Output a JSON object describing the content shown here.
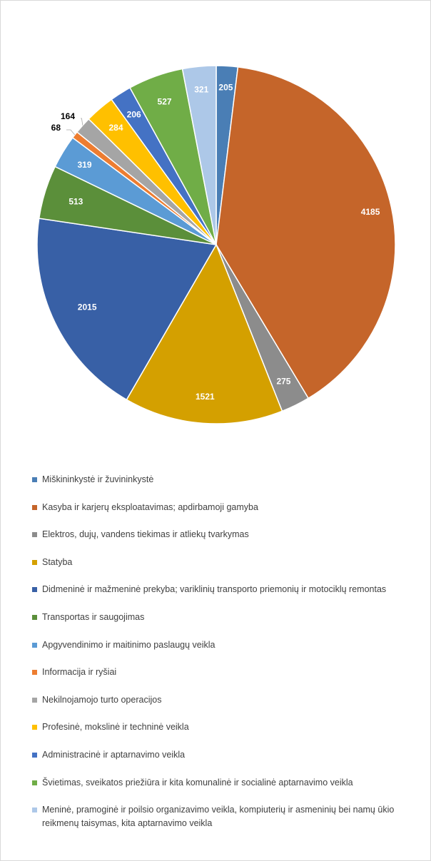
{
  "chart_data": {
    "type": "pie",
    "categories": [
      "Miškininkystė ir žuvininkystė",
      "Kasyba ir karjerų eksploatavimas; apdirbamoji gamyba",
      "Elektros, dujų, vandens tiekimas ir atliekų tvarkymas",
      "Statyba",
      "Didmeninė ir mažmeninė prekyba; variklinių transporto priemonių ir motociklų remontas",
      "Transportas ir saugojimas",
      "Apgyvendinimo ir maitinimo paslaugų veikla",
      "Informacija ir ryšiai",
      "Nekilnojamojo turto operacijos",
      "Profesinė, mokslinė ir techninė veikla",
      "Administracinė ir aptarnavimo veikla",
      "Švietimas, sveikatos priežiūra ir kita komunalinė ir socialinė aptarnavimo veikla",
      "Meninė, pramoginė ir poilsio organizavimo veikla, kompiuterių ir asmeninių bei namų ūkio reikmenų taisymas, kita aptarnavimo veikla"
    ],
    "values": [
      205,
      4185,
      275,
      1521,
      2015,
      513,
      319,
      68,
      164,
      284,
      206,
      527,
      321
    ],
    "data_labels": [
      "205",
      "4185",
      "275",
      "1521",
      "2015",
      "513",
      "319",
      "68",
      "164",
      "284",
      "206",
      "527",
      "321"
    ],
    "colors": [
      "#4a7eb5",
      "#c5652a",
      "#8c8c8c",
      "#d4a000",
      "#3860a6",
      "#5b8f3a",
      "#5b9bd5",
      "#ed7d31",
      "#a5a5a5",
      "#ffc000",
      "#4472c4",
      "#70ad47",
      "#adc8e8"
    ],
    "label_colors": [
      "#ffffff",
      "#ffffff",
      "#ffffff",
      "#ffffff",
      "#ffffff",
      "#ffffff",
      "#ffffff",
      "#000000",
      "#000000",
      "#ffffff",
      "#ffffff",
      "#ffffff",
      "#ffffff"
    ],
    "legend_position": "bottom",
    "title": ""
  }
}
